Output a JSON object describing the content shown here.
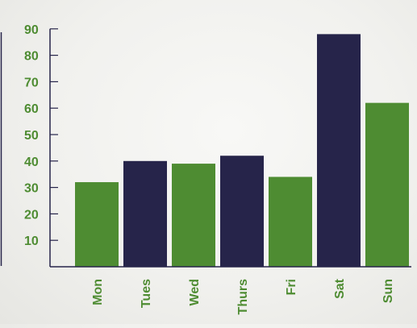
{
  "chart_data": {
    "type": "bar",
    "title": "",
    "xlabel": "",
    "ylabel": "",
    "categories": [
      "Mon",
      "Tues",
      "Wed",
      "Thurs",
      "Fri",
      "Sat",
      "Sun"
    ],
    "values": [
      32,
      40,
      39,
      42,
      34,
      88,
      62
    ],
    "yticks": [
      10,
      20,
      30,
      40,
      50,
      60,
      70,
      80,
      90
    ],
    "ylim": [
      0,
      95
    ],
    "grid": false,
    "legend": "none",
    "colors": {
      "bar_green": "#4e8c32",
      "bar_navy": "#26244a",
      "label_green": "#4e8c32",
      "axis": "#26244a"
    },
    "bar_colors": [
      "#4e8c32",
      "#26244a",
      "#4e8c32",
      "#26244a",
      "#4e8c32",
      "#26244a",
      "#4e8c32"
    ]
  }
}
